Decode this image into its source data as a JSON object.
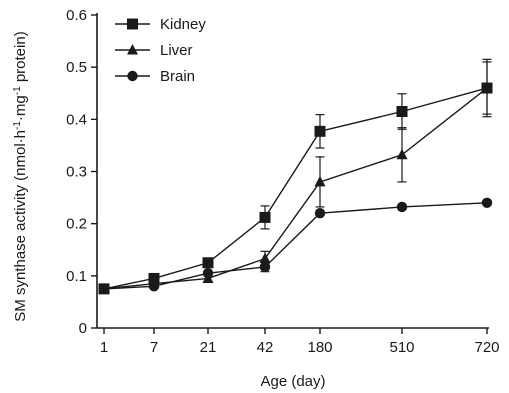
{
  "chart_data": {
    "type": "line",
    "title": "",
    "xlabel": "Age (day)",
    "ylabel_base": "SM synthase activity (nmol·h",
    "ylabel_sup1": "-1",
    "ylabel_mid": "·mg",
    "ylabel_sup2": "-1",
    "ylabel_end": " protein)",
    "categories": [
      "1",
      "7",
      "21",
      "42",
      "180",
      "510",
      "720"
    ],
    "ylim": [
      0,
      0.6
    ],
    "yticks": [
      0,
      0.1,
      0.2,
      0.3,
      0.4,
      0.5,
      0.6
    ],
    "ytick_labels": [
      "0",
      "0.1",
      "0.2",
      "0.3",
      "0.4",
      "0.5",
      "0.6"
    ],
    "grid": false,
    "legend_position": "top-left",
    "series": [
      {
        "name": "Kidney",
        "marker": "square",
        "values": [
          0.075,
          0.095,
          0.125,
          0.212,
          0.377,
          0.415,
          0.46
        ],
        "errors": [
          0.004,
          0.006,
          0.006,
          0.022,
          0.032,
          0.034,
          0.05
        ]
      },
      {
        "name": "Liver",
        "marker": "triangle",
        "values": [
          0.075,
          0.085,
          0.095,
          0.133,
          0.28,
          0.332,
          0.46
        ],
        "errors": [
          0.004,
          0.004,
          0.006,
          0.014,
          0.048,
          0.052,
          0.055
        ]
      },
      {
        "name": "Brain",
        "marker": "circle",
        "values": [
          0.075,
          0.08,
          0.105,
          0.117,
          0.22,
          0.232,
          0.24
        ],
        "errors": [
          0.003,
          0.004,
          0.005,
          0.009,
          0.004,
          0.003,
          0.004
        ]
      }
    ]
  }
}
